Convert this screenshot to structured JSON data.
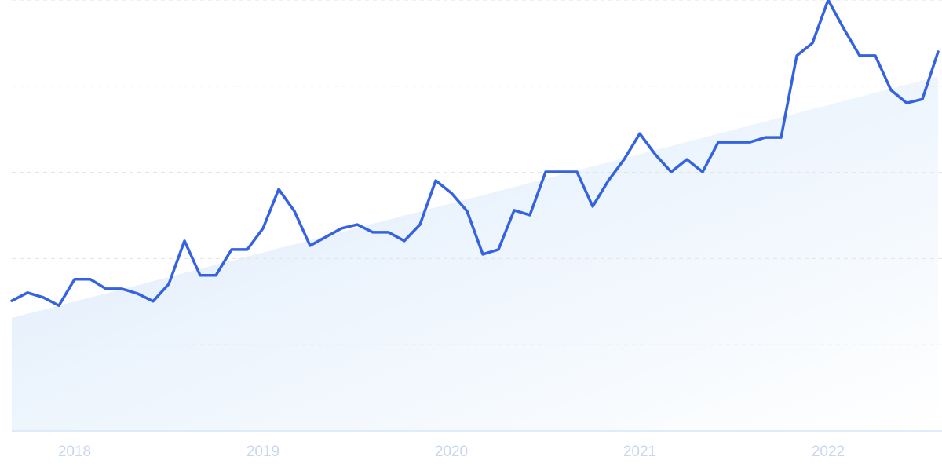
{
  "chart_data": {
    "type": "line",
    "categories": [
      null,
      null,
      null,
      null,
      "2018",
      null,
      null,
      null,
      null,
      null,
      null,
      null,
      null,
      null,
      null,
      null,
      "2019",
      null,
      null,
      null,
      null,
      null,
      null,
      null,
      null,
      null,
      null,
      null,
      "2020",
      null,
      null,
      null,
      null,
      null,
      null,
      null,
      null,
      null,
      null,
      null,
      "2021",
      null,
      null,
      null,
      null,
      null,
      null,
      null,
      null,
      null,
      null,
      null,
      "2022",
      null,
      null,
      null,
      null,
      null,
      null,
      null
    ],
    "series": [
      {
        "color": "#3563e0",
        "values": [
          30.2,
          32.1,
          31.0,
          29.1,
          35.2,
          35.2,
          33.0,
          33.0,
          31.9,
          30.1,
          34.1,
          44.1,
          36.1,
          36.1,
          42.1,
          42.1,
          47.0,
          56.1,
          51.0,
          43.0,
          45.0,
          47.0,
          47.9,
          46.1,
          46.1,
          44.1,
          47.9,
          58.1,
          55.2,
          51.0,
          41.0,
          42.1,
          51.2,
          50.1,
          60.1,
          60.1,
          60.1,
          52.1,
          58.1,
          63.0,
          69.0,
          64.1,
          60.1,
          63.0,
          60.1,
          67.0,
          67.0,
          67.0,
          68.1,
          68.1,
          87.1,
          90.0,
          100,
          93.3,
          87.1,
          87.1,
          79.1,
          76.1,
          77.0,
          88.0
        ]
      }
    ],
    "trend": {
      "color": "#dcebfb",
      "values": [
        26.2,
        27.2,
        28.1,
        29.1,
        30.0,
        31.0,
        31.9,
        32.9,
        33.8,
        34.8,
        35.7,
        36.7,
        37.6,
        38.6,
        39.5,
        40.5,
        41.4,
        42.4,
        43.3,
        44.3,
        45.2,
        46.2,
        47.1,
        48.1,
        49.0,
        50.0,
        50.9,
        51.9,
        52.8,
        53.8,
        54.7,
        55.7,
        56.6,
        57.6,
        58.5,
        59.5,
        60.4,
        61.4,
        62.3,
        63.3,
        64.2,
        65.2,
        66.1,
        67.1,
        68.0,
        69.0,
        69.9,
        70.9,
        71.8,
        72.8,
        73.7,
        74.7,
        75.6,
        76.6,
        77.5,
        78.5,
        79.4,
        80.4,
        81.3,
        82.3
      ]
    },
    "ylim": [
      0,
      100
    ],
    "yticks": [
      0,
      20,
      40,
      60,
      80,
      100
    ],
    "grid": true
  }
}
